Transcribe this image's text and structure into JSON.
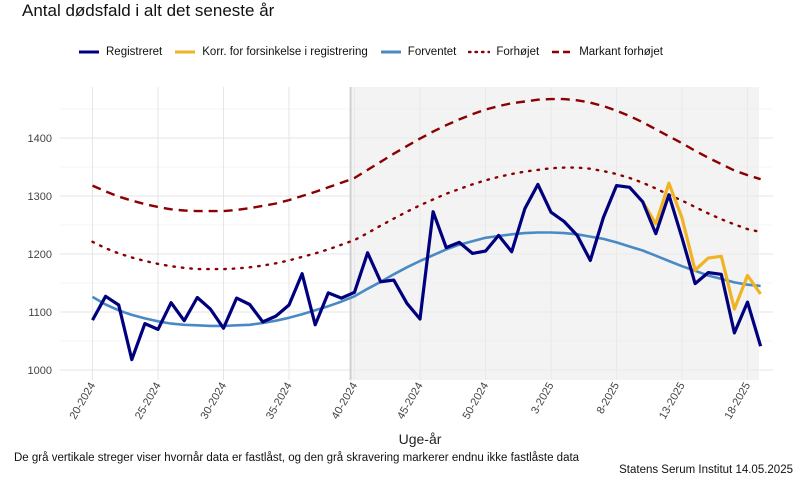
{
  "title": "Antal dødsfald i alt det seneste år",
  "xlabel": "Uge-år",
  "caption": "De grå vertikale streger viser hvornår data er fastlåst, og den grå skravering markerer endnu ikke fastlåste data",
  "source": "Statens Serum Institut  14.05.2025",
  "legend": [
    {
      "label": "Registreret",
      "color": "#00007f",
      "style": "solid"
    },
    {
      "label": "Korr. for forsinkelse i registrering",
      "color": "#f0b323",
      "style": "solid"
    },
    {
      "label": "Forventet",
      "color": "#4a8ac4",
      "style": "solid"
    },
    {
      "label": "Forhøjet",
      "color": "#8b0000",
      "style": "dotted"
    },
    {
      "label": "Markant forhøjet",
      "color": "#8b0000",
      "style": "dashed"
    }
  ],
  "chart_data": {
    "type": "line",
    "x_tick_labels": [
      "20-2024",
      "25-2024",
      "30-2024",
      "35-2024",
      "40-2024",
      "45-2024",
      "50-2024",
      "3-2025",
      "8-2025",
      "13-2025",
      "18-2025"
    ],
    "x_tick_weeks": [
      0,
      5,
      10,
      15,
      20,
      25,
      30,
      35,
      40,
      45,
      50
    ],
    "ylim": [
      1000,
      1480
    ],
    "y_ticks": [
      1000,
      1100,
      1200,
      1300,
      1400
    ],
    "shaded_from_week": 19.7,
    "grid": true,
    "legend_position": "top",
    "series": [
      {
        "name": "Registreret",
        "color": "#00007f",
        "values": [
          1086,
          1127,
          1112,
          1018,
          1080,
          1070,
          1116,
          1085,
          1125,
          1105,
          1072,
          1124,
          1113,
          1083,
          1093,
          1112,
          1166,
          1078,
          1133,
          1124,
          1134,
          1202,
          1152,
          1155,
          1115,
          1088,
          1273,
          1211,
          1220,
          1201,
          1205,
          1232,
          1204,
          1278,
          1320,
          1272,
          1256,
          1232,
          1189,
          1263,
          1318,
          1315,
          1290,
          1235,
          1302,
          1228,
          1149,
          1168,
          1165,
          1064,
          1117,
          1041
        ]
      },
      {
        "name": "Korr. for forsinkelse i registrering",
        "color": "#f0b323",
        "start_week": 42,
        "values": [
          1290,
          1252,
          1322,
          1262,
          1172,
          1193,
          1196,
          1105,
          1163,
          1131
        ]
      },
      {
        "name": "Forventet",
        "color": "#4a8ac4",
        "values": [
          1126,
          1113,
          1103,
          1095,
          1089,
          1084,
          1080,
          1078,
          1077,
          1076,
          1076,
          1077,
          1078,
          1081,
          1085,
          1090,
          1096,
          1103,
          1110,
          1118,
          1127,
          1140,
          1152,
          1165,
          1177,
          1188,
          1198,
          1208,
          1216,
          1222,
          1228,
          1231,
          1234,
          1236,
          1237,
          1237,
          1236,
          1234,
          1230,
          1226,
          1220,
          1213,
          1206,
          1197,
          1188,
          1179,
          1171,
          1163,
          1157,
          1151,
          1147,
          1145
        ]
      },
      {
        "name": "Forhøjet",
        "color": "#8b0000",
        "values": [
          1221,
          1210,
          1201,
          1194,
          1188,
          1183,
          1179,
          1176,
          1174,
          1174,
          1174,
          1175,
          1177,
          1180,
          1184,
          1189,
          1195,
          1201,
          1208,
          1216,
          1224,
          1236,
          1249,
          1261,
          1273,
          1284,
          1294,
          1304,
          1312,
          1320,
          1327,
          1333,
          1338,
          1342,
          1345,
          1348,
          1349,
          1349,
          1347,
          1343,
          1338,
          1331,
          1323,
          1313,
          1302,
          1292,
          1281,
          1270,
          1260,
          1251,
          1243,
          1238
        ]
      },
      {
        "name": "Markant forhøjet",
        "color": "#8b0000",
        "values": [
          1318,
          1308,
          1299,
          1292,
          1286,
          1281,
          1277,
          1275,
          1274,
          1274,
          1274,
          1276,
          1279,
          1283,
          1287,
          1293,
          1300,
          1307,
          1315,
          1323,
          1331,
          1345,
          1359,
          1373,
          1386,
          1399,
          1411,
          1422,
          1432,
          1441,
          1449,
          1455,
          1460,
          1463,
          1466,
          1467,
          1467,
          1465,
          1461,
          1455,
          1447,
          1438,
          1427,
          1415,
          1403,
          1391,
          1378,
          1366,
          1355,
          1344,
          1336,
          1329
        ]
      }
    ]
  }
}
